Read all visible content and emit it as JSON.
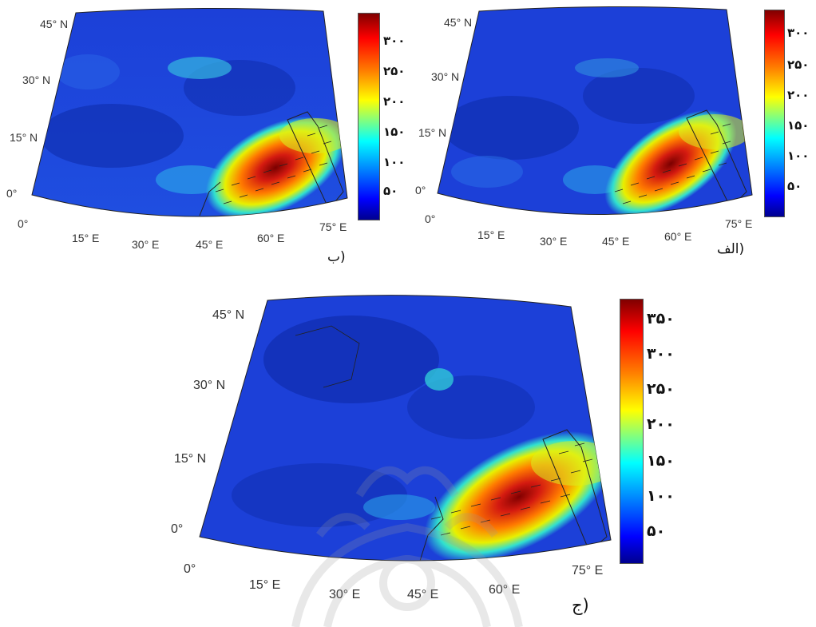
{
  "panels": [
    {
      "id": "b",
      "tag": "(ب",
      "lat_labels": [
        "45° N",
        "30° N",
        "15° N",
        "0°"
      ],
      "lon_labels": [
        "0°",
        "15° E",
        "30° E",
        "45° E",
        "60° E",
        "75° E"
      ],
      "colorbar_ticks": [
        "۳۰۰",
        "۲۵۰",
        "۲۰۰",
        "۱۵۰",
        "۱۰۰",
        "۵۰"
      ]
    },
    {
      "id": "alef",
      "tag": "(الف",
      "lat_labels": [
        "45° N",
        "30° N",
        "15° N",
        "0°"
      ],
      "lon_labels": [
        "0°",
        "15° E",
        "30° E",
        "45° E",
        "60° E",
        "75° E"
      ],
      "colorbar_ticks": [
        "۳۰۰",
        "۲۵۰",
        "۲۰۰",
        "۱۵۰",
        "۱۰۰",
        "۵۰"
      ]
    },
    {
      "id": "jim",
      "tag": "(ج",
      "lat_labels": [
        "45° N",
        "30° N",
        "15° N",
        "0°"
      ],
      "lon_labels": [
        "0°",
        "15° E",
        "30° E",
        "45° E",
        "60° E",
        "75° E"
      ],
      "colorbar_ticks": [
        "۳۵۰",
        "۳۰۰",
        "۲۵۰",
        "۲۰۰",
        "۱۵۰",
        "۱۰۰",
        "۵۰"
      ]
    }
  ],
  "colormap": [
    "#00008f",
    "#0000ff",
    "#0080ff",
    "#00ffff",
    "#80ff80",
    "#ffff00",
    "#ff8000",
    "#ff0000",
    "#800000"
  ],
  "field_colors": {
    "background": "#1a3fd6",
    "dark": "#0d2a9e",
    "hot": "#c81414"
  }
}
